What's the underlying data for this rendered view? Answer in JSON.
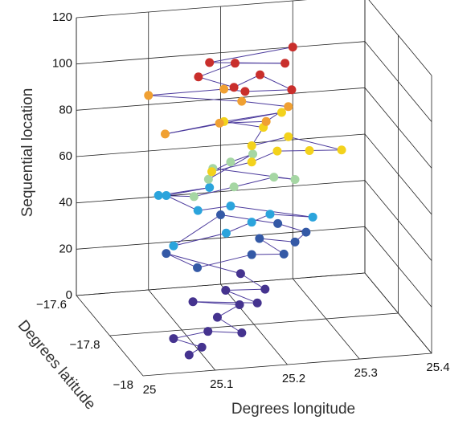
{
  "chart_data": {
    "type": "scatter3d",
    "xlabel": "Degrees longitude",
    "ylabel": "Degrees latitude",
    "zlabel": "Sequential location",
    "xlim": [
      25,
      25.4
    ],
    "ylim": [
      -18,
      -17.6
    ],
    "zlim": [
      0,
      120
    ],
    "xticks": [
      25,
      25.1,
      25.2,
      25.3,
      25.4
    ],
    "yticks": [
      {
        "value": -18,
        "label": "−18"
      },
      {
        "value": -17.8,
        "label": "−17.8"
      },
      {
        "value": -17.6,
        "label": "−17.6"
      }
    ],
    "zticks": [
      0,
      20,
      40,
      60,
      80,
      100,
      120
    ],
    "grid": true,
    "line_color": "#4b3a9c",
    "series": [
      {
        "color": "#45338f",
        "x": [
          25.08,
          25.1,
          25.07,
          25.12,
          25.16,
          25.14,
          25.18,
          25.12,
          25.2,
          25.17,
          25.22,
          25.2
        ],
        "y": [
          -17.93,
          -17.92,
          -17.88,
          -17.87,
          -17.9,
          -17.84,
          -17.8,
          -17.78,
          -17.82,
          -17.76,
          -17.78,
          -17.72
        ],
        "z": [
          1,
          3,
          4,
          5,
          6,
          8,
          9,
          10,
          11,
          12,
          13,
          15
        ]
      },
      {
        "color": "#3459a6",
        "x": [
          25.12,
          25.14,
          25.22,
          25.26,
          25.24,
          25.28,
          25.3,
          25.27,
          25.2
        ],
        "y": [
          -17.62,
          -17.72,
          -17.7,
          -17.72,
          -17.66,
          -17.7,
          -17.68,
          -17.64,
          -17.6
        ],
        "z": [
          17,
          19,
          21,
          22,
          24,
          25,
          27,
          28,
          30
        ]
      },
      {
        "color": "#2ba4dc",
        "x": [
          25.1,
          25.18,
          25.22,
          25.25,
          25.3,
          25.2,
          25.15,
          25.12,
          25.18,
          25.1
        ],
        "y": [
          -17.75,
          -17.72,
          -17.7,
          -17.68,
          -17.72,
          -17.66,
          -17.68,
          -17.62,
          -17.62,
          -17.66
        ],
        "z": [
          32,
          33,
          35,
          36,
          37,
          39,
          40,
          42,
          44,
          46
        ]
      },
      {
        "color": "#a5d6a3",
        "x": [
          25.14,
          25.2,
          25.26,
          25.28,
          25.18,
          25.16,
          25.24,
          25.2
        ],
        "y": [
          -17.7,
          -17.68,
          -17.66,
          -17.7,
          -17.64,
          -17.7,
          -17.62,
          -17.66
        ],
        "z": [
          48,
          49,
          50,
          52,
          54,
          55,
          57,
          58
        ]
      },
      {
        "color": "#f3d21c",
        "x": [
          25.16,
          25.22,
          25.26,
          25.3,
          25.34,
          25.28,
          25.22,
          25.25,
          25.2,
          25.28
        ],
        "y": [
          -17.72,
          -17.7,
          -17.68,
          -17.7,
          -17.72,
          -17.66,
          -17.7,
          -17.64,
          -17.62,
          -17.62
        ],
        "z": [
          60,
          61,
          63,
          64,
          65,
          67,
          68,
          70,
          72,
          74
        ]
      },
      {
        "color": "#f0a032",
        "x": [
          25.1,
          25.18,
          25.24,
          25.28,
          25.22,
          25.1,
          25.2
        ],
        "y": [
          -17.7,
          -17.68,
          -17.7,
          -17.66,
          -17.64,
          -17.6,
          -17.62
        ],
        "z": [
          76,
          77,
          78,
          80,
          82,
          84,
          86
        ]
      },
      {
        "color": "#c92f2c",
        "x": [
          25.22,
          25.28,
          25.25,
          25.2,
          25.16,
          25.22,
          25.28,
          25.18,
          25.3
        ],
        "y": [
          -17.66,
          -17.68,
          -17.62,
          -17.68,
          -17.64,
          -17.6,
          -17.64,
          -17.62,
          -17.6
        ],
        "z": [
          88,
          89,
          91,
          92,
          94,
          95,
          97,
          98,
          100
        ]
      }
    ]
  }
}
